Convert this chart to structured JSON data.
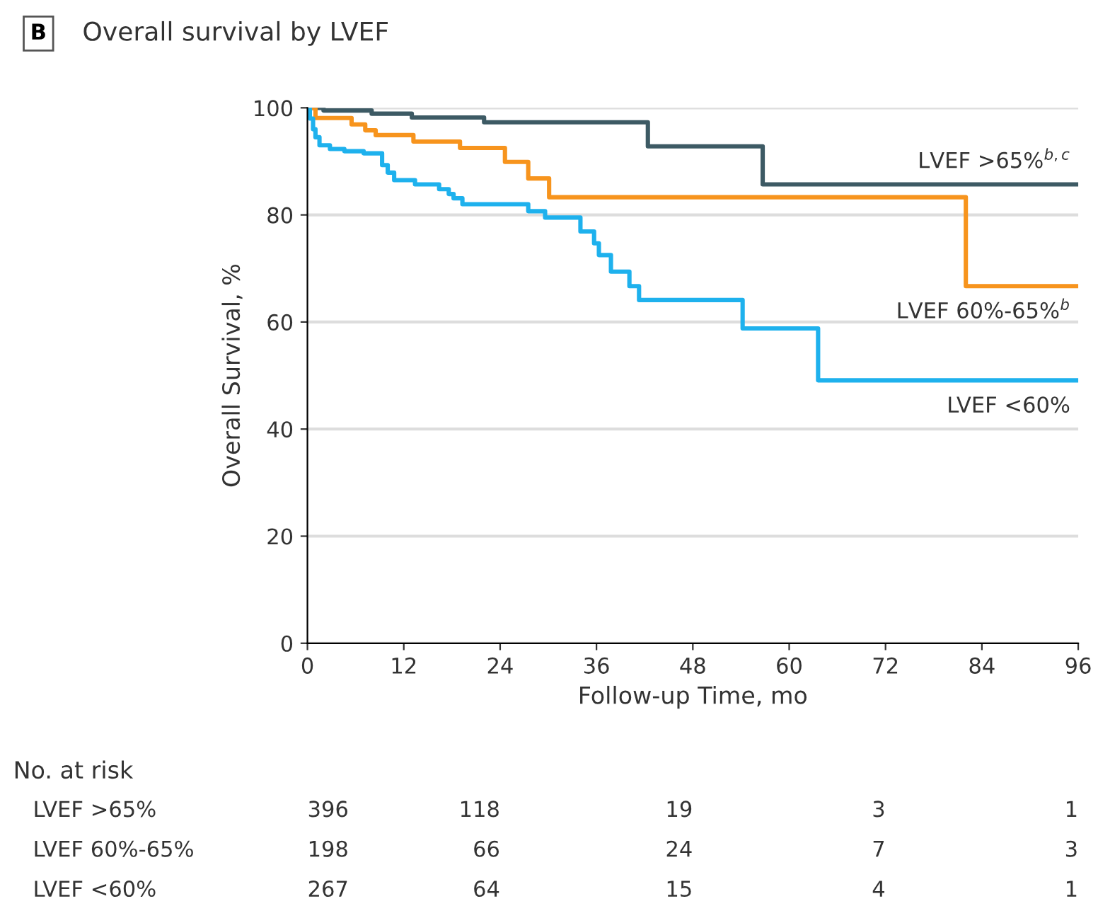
{
  "chart_data": {
    "type": "step",
    "title": "Overall survival by LVEF",
    "xlabel": "Follow-up Time, mo",
    "ylabel": "Overall Survival, %",
    "xlim": [
      0,
      96
    ],
    "xticks": [
      0,
      12,
      24,
      36,
      48,
      60,
      72,
      84,
      96
    ],
    "ylim": [
      0,
      100
    ],
    "yticks": [
      0,
      20,
      40,
      60,
      80,
      100
    ],
    "grid": "y",
    "legend": false,
    "series": [
      {
        "name": "LVEF >65%$^{b,c}$",
        "color": "#3d5a64",
        "x": [
          0,
          2,
          8,
          13,
          22,
          42.4,
          56.7,
          96
        ],
        "values": [
          100,
          99.5,
          98.9,
          98.2,
          97.3,
          92.8,
          85.7,
          85.7
        ]
      },
      {
        "name": "LVEF 60%-65%$^{b}$",
        "color": "#f7941d",
        "x": [
          0,
          1,
          5.5,
          7.2,
          8.5,
          13.2,
          19,
          24.6,
          27.5,
          30.1,
          82,
          96
        ],
        "values": [
          100,
          98.1,
          96.9,
          95.8,
          94.9,
          93.7,
          92.5,
          89.9,
          86.8,
          83.3,
          66.7,
          66.7
        ]
      },
      {
        "name": "LVEF <60%",
        "color": "#1eb1ed",
        "x": [
          0,
          0.3,
          0.7,
          1,
          1.5,
          2.8,
          4.6,
          7,
          9.3,
          10,
          10.8,
          13.4,
          16.4,
          17.6,
          18.2,
          19.3,
          27.5,
          29.6,
          34,
          35.7,
          36.3,
          37.8,
          40.1,
          41.3,
          54.2,
          63.6,
          96
        ],
        "values": [
          100,
          98,
          96,
          94.5,
          93,
          92.3,
          91.9,
          91.5,
          89.3,
          87.9,
          86.5,
          85.7,
          84.8,
          83.9,
          83.1,
          82.0,
          80.7,
          79.5,
          76.9,
          74.7,
          72.5,
          69.4,
          66.7,
          64.1,
          58.8,
          49.1,
          49.1
        ]
      }
    ],
    "annotations": [
      "B",
      "No. at risk",
      "LVEF >65%",
      "396",
      "118",
      "19",
      "3",
      "1",
      "LVEF 60%-65%",
      "198",
      "66",
      "24",
      "7",
      "3",
      "LVEF <60%",
      "267",
      "64",
      "15",
      "4",
      "1"
    ]
  }
}
